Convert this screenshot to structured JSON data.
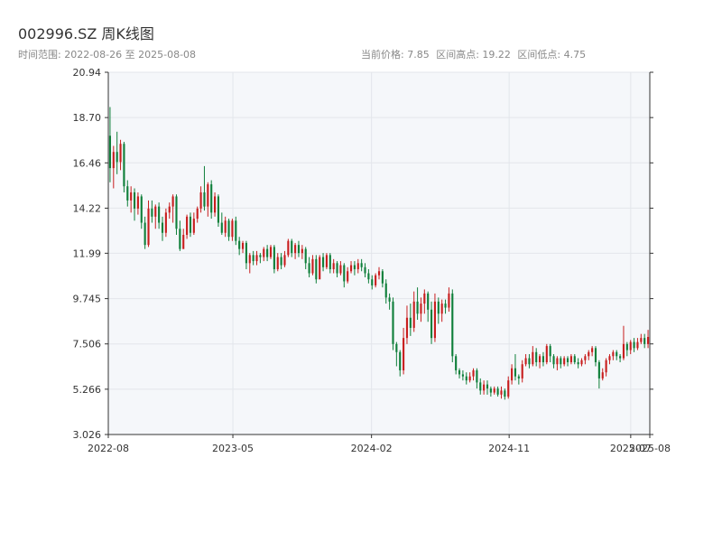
{
  "header": {
    "title": "002996.SZ 周K线图",
    "date_range": "时间范围: 2022-08-26 至 2025-08-08",
    "current_price": "当前价格: 7.85",
    "high": "区间高点: 19.22",
    "low": "区间低点: 4.75"
  },
  "colors": {
    "up": "#c81e1e",
    "down": "#0f7f3a",
    "plot_bg": "#f5f7fa",
    "grid": "#e3e6eb",
    "axis": "#333333"
  },
  "chart_data": {
    "type": "candlestick",
    "ylim": [
      3.026,
      20.94
    ],
    "yticks": [
      "20.94",
      "18.70",
      "16.46",
      "14.22",
      "11.99",
      "9.745",
      "7.506",
      "5.266",
      "3.026"
    ],
    "ytick_values": [
      20.94,
      18.7,
      16.46,
      14.22,
      11.99,
      9.745,
      7.506,
      5.266,
      3.026
    ],
    "x_start": "2022-08-26",
    "x_end": "2025-08-08",
    "xticks": [
      {
        "label": "2022-08",
        "date": "2022-08-26"
      },
      {
        "label": "2023-05",
        "date": "2023-05-01"
      },
      {
        "label": "2024-02",
        "date": "2024-02-01"
      },
      {
        "label": "2024-11",
        "date": "2024-11-01"
      },
      {
        "label": "2025-07",
        "date": "2025-07-01"
      },
      {
        "label": "2025-08",
        "date": "2025-08-08"
      }
    ],
    "candles": [
      [
        17.8,
        16.2,
        19.22,
        15.5
      ],
      [
        16.2,
        17.0,
        17.3,
        15.2
      ],
      [
        17.0,
        16.5,
        18.0,
        15.9
      ],
      [
        16.5,
        17.4,
        17.6,
        16.1
      ],
      [
        17.4,
        15.3,
        17.5,
        15.0
      ],
      [
        15.3,
        14.6,
        15.6,
        14.3
      ],
      [
        14.6,
        15.0,
        15.3,
        14.0
      ],
      [
        15.0,
        14.2,
        15.2,
        13.6
      ],
      [
        14.2,
        14.8,
        15.0,
        13.9
      ],
      [
        14.8,
        13.5,
        14.9,
        13.2
      ],
      [
        13.5,
        12.4,
        13.8,
        12.2
      ],
      [
        12.4,
        14.2,
        14.6,
        12.3
      ],
      [
        14.2,
        13.8,
        14.6,
        13.5
      ],
      [
        13.8,
        14.3,
        14.4,
        13.2
      ],
      [
        14.3,
        13.5,
        14.5,
        13.2
      ],
      [
        13.5,
        13.0,
        13.8,
        12.6
      ],
      [
        13.0,
        14.0,
        14.2,
        12.8
      ],
      [
        14.0,
        14.3,
        14.5,
        13.7
      ],
      [
        14.3,
        14.8,
        14.9,
        13.5
      ],
      [
        14.8,
        13.2,
        14.9,
        12.9
      ],
      [
        13.2,
        12.2,
        13.6,
        12.1
      ],
      [
        12.2,
        12.9,
        13.2,
        12.2
      ],
      [
        12.9,
        13.8,
        13.9,
        12.7
      ],
      [
        13.8,
        13.0,
        14.0,
        12.8
      ],
      [
        13.0,
        13.7,
        14.0,
        12.9
      ],
      [
        13.7,
        14.2,
        14.3,
        13.5
      ],
      [
        14.2,
        15.0,
        15.3,
        14.0
      ],
      [
        15.0,
        14.3,
        16.3,
        14.1
      ],
      [
        14.3,
        15.4,
        15.5,
        13.8
      ],
      [
        15.4,
        14.0,
        15.6,
        13.7
      ],
      [
        14.0,
        14.8,
        15.0,
        13.8
      ],
      [
        14.8,
        13.5,
        14.9,
        13.3
      ],
      [
        13.5,
        13.0,
        14.0,
        12.9
      ],
      [
        13.0,
        13.6,
        13.8,
        12.8
      ],
      [
        13.6,
        12.8,
        13.7,
        12.6
      ],
      [
        12.8,
        13.6,
        13.7,
        12.6
      ],
      [
        13.6,
        12.6,
        13.8,
        12.4
      ],
      [
        12.6,
        12.2,
        12.8,
        11.9
      ],
      [
        12.2,
        12.5,
        12.6,
        12.0
      ],
      [
        12.5,
        11.5,
        12.6,
        11.2
      ],
      [
        11.5,
        11.9,
        12.0,
        11.0
      ],
      [
        11.9,
        11.6,
        12.1,
        11.4
      ],
      [
        11.6,
        11.9,
        12.1,
        11.4
      ],
      [
        11.9,
        11.8,
        12.0,
        11.5
      ],
      [
        11.8,
        12.2,
        12.3,
        11.6
      ],
      [
        12.2,
        11.8,
        12.4,
        11.6
      ],
      [
        11.8,
        12.3,
        12.4,
        11.7
      ],
      [
        12.3,
        11.2,
        12.4,
        11.0
      ],
      [
        11.2,
        11.8,
        12.0,
        11.1
      ],
      [
        11.8,
        11.4,
        12.0,
        11.2
      ],
      [
        11.4,
        11.9,
        12.1,
        11.3
      ],
      [
        11.9,
        12.6,
        12.7,
        11.8
      ],
      [
        12.6,
        12.0,
        12.7,
        11.8
      ],
      [
        12.0,
        12.4,
        12.5,
        11.7
      ],
      [
        12.4,
        12.0,
        12.6,
        11.8
      ],
      [
        12.0,
        12.2,
        12.4,
        11.7
      ],
      [
        12.2,
        11.5,
        12.3,
        11.2
      ],
      [
        11.5,
        11.0,
        11.8,
        10.8
      ],
      [
        11.0,
        11.7,
        11.9,
        10.9
      ],
      [
        11.7,
        10.7,
        11.9,
        10.5
      ],
      [
        10.7,
        11.8,
        11.9,
        10.7
      ],
      [
        11.8,
        11.3,
        12.0,
        11.1
      ],
      [
        11.3,
        11.9,
        12.0,
        11.2
      ],
      [
        11.9,
        11.2,
        12.0,
        11.0
      ],
      [
        11.2,
        11.5,
        11.7,
        11.0
      ],
      [
        11.5,
        11.0,
        11.6,
        10.8
      ],
      [
        11.0,
        11.4,
        11.6,
        10.9
      ],
      [
        11.4,
        10.6,
        11.5,
        10.3
      ],
      [
        10.6,
        11.1,
        11.3,
        10.5
      ],
      [
        11.1,
        11.4,
        11.6,
        11.0
      ],
      [
        11.4,
        11.2,
        11.6,
        10.9
      ],
      [
        11.2,
        11.5,
        11.7,
        11.0
      ],
      [
        11.5,
        11.3,
        11.7,
        11.1
      ],
      [
        11.3,
        11.0,
        11.5,
        10.8
      ],
      [
        11.0,
        10.7,
        11.2,
        10.5
      ],
      [
        10.7,
        10.4,
        10.9,
        10.2
      ],
      [
        10.4,
        10.9,
        11.0,
        10.3
      ],
      [
        10.9,
        11.1,
        11.3,
        10.7
      ],
      [
        11.1,
        10.5,
        11.2,
        10.3
      ],
      [
        10.5,
        9.8,
        10.7,
        9.5
      ],
      [
        9.8,
        9.6,
        10.0,
        9.2
      ],
      [
        9.6,
        7.5,
        9.8,
        7.2
      ],
      [
        7.5,
        7.1,
        7.6,
        6.4
      ],
      [
        7.1,
        6.2,
        7.2,
        5.9
      ],
      [
        6.2,
        7.8,
        8.3,
        6.0
      ],
      [
        7.8,
        8.8,
        9.4,
        7.5
      ],
      [
        8.8,
        8.3,
        9.5,
        7.9
      ],
      [
        8.3,
        9.6,
        10.1,
        8.1
      ],
      [
        9.6,
        9.0,
        10.3,
        8.7
      ],
      [
        9.0,
        9.5,
        9.8,
        8.6
      ],
      [
        9.5,
        10.0,
        10.2,
        9.0
      ],
      [
        10.0,
        9.2,
        10.1,
        8.6
      ],
      [
        9.2,
        7.8,
        9.6,
        7.5
      ],
      [
        7.8,
        9.6,
        10.0,
        7.6
      ],
      [
        9.6,
        9.0,
        9.8,
        8.5
      ],
      [
        9.0,
        9.5,
        9.7,
        8.6
      ],
      [
        9.5,
        9.3,
        9.7,
        9.0
      ],
      [
        9.3,
        10.0,
        10.3,
        9.1
      ],
      [
        10.0,
        6.9,
        10.2,
        6.6
      ],
      [
        6.9,
        6.2,
        7.0,
        6.0
      ],
      [
        6.2,
        6.0,
        6.3,
        5.8
      ],
      [
        6.0,
        5.9,
        6.2,
        5.7
      ],
      [
        5.9,
        5.7,
        6.1,
        5.5
      ],
      [
        5.7,
        5.9,
        6.1,
        5.6
      ],
      [
        5.9,
        6.2,
        6.3,
        5.7
      ],
      [
        6.2,
        5.6,
        6.3,
        5.3
      ],
      [
        5.6,
        5.2,
        5.8,
        5.0
      ],
      [
        5.2,
        5.5,
        5.7,
        5.0
      ],
      [
        5.5,
        5.3,
        5.7,
        5.0
      ],
      [
        5.3,
        5.1,
        5.4,
        4.9
      ],
      [
        5.1,
        5.3,
        5.4,
        5.0
      ],
      [
        5.3,
        5.0,
        5.4,
        4.9
      ],
      [
        5.0,
        5.2,
        5.4,
        4.8
      ],
      [
        5.2,
        4.9,
        5.3,
        4.75
      ],
      [
        4.9,
        5.7,
        5.9,
        4.8
      ],
      [
        5.7,
        6.3,
        6.5,
        5.5
      ],
      [
        6.3,
        5.9,
        7.0,
        5.7
      ],
      [
        5.9,
        5.8,
        6.0,
        5.5
      ],
      [
        5.8,
        6.5,
        6.7,
        5.6
      ],
      [
        6.5,
        6.8,
        7.0,
        6.4
      ],
      [
        6.8,
        6.5,
        7.0,
        6.3
      ],
      [
        6.5,
        7.1,
        7.4,
        6.4
      ],
      [
        7.1,
        6.6,
        7.3,
        6.4
      ],
      [
        6.6,
        6.9,
        7.0,
        6.3
      ],
      [
        6.9,
        6.6,
        7.1,
        6.4
      ],
      [
        6.6,
        7.4,
        7.5,
        6.5
      ],
      [
        7.4,
        6.9,
        7.5,
        6.6
      ],
      [
        6.9,
        6.5,
        7.0,
        6.3
      ],
      [
        6.5,
        6.8,
        6.9,
        6.2
      ],
      [
        6.8,
        6.5,
        6.9,
        6.3
      ],
      [
        6.5,
        6.8,
        6.9,
        6.4
      ],
      [
        6.8,
        6.6,
        6.9,
        6.4
      ],
      [
        6.6,
        6.9,
        7.0,
        6.5
      ],
      [
        6.9,
        6.6,
        7.0,
        6.5
      ],
      [
        6.6,
        6.5,
        6.8,
        6.3
      ],
      [
        6.5,
        6.7,
        6.8,
        6.4
      ],
      [
        6.7,
        6.9,
        7.0,
        6.5
      ],
      [
        6.9,
        7.1,
        7.2,
        6.7
      ],
      [
        7.1,
        7.3,
        7.4,
        6.9
      ],
      [
        7.3,
        6.6,
        7.4,
        6.4
      ],
      [
        6.6,
        5.8,
        6.7,
        5.3
      ],
      [
        5.8,
        6.1,
        6.3,
        5.7
      ],
      [
        6.1,
        6.7,
        6.8,
        5.9
      ],
      [
        6.7,
        6.9,
        7.0,
        6.5
      ],
      [
        6.9,
        7.1,
        7.2,
        6.7
      ],
      [
        7.1,
        6.9,
        7.2,
        6.7
      ],
      [
        6.9,
        6.8,
        7.0,
        6.6
      ],
      [
        6.8,
        7.5,
        8.4,
        6.7
      ],
      [
        7.5,
        7.2,
        7.6,
        6.9
      ],
      [
        7.2,
        7.6,
        7.7,
        7.0
      ],
      [
        7.6,
        7.3,
        7.8,
        7.1
      ],
      [
        7.3,
        7.6,
        7.8,
        7.2
      ],
      [
        7.6,
        7.8,
        8.0,
        7.5
      ],
      [
        7.8,
        7.5,
        8.0,
        7.3
      ],
      [
        7.5,
        7.85,
        8.2,
        7.3
      ]
    ]
  }
}
